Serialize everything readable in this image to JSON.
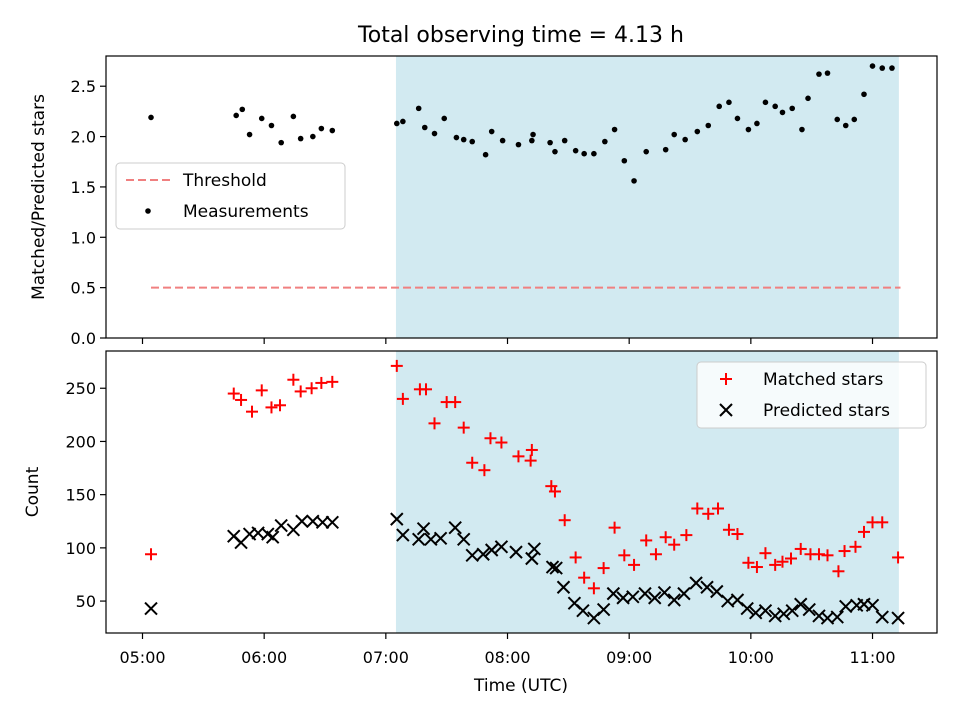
{
  "chart_data": [
    {
      "type": "scatter",
      "title": "Total observing time = 4.13 h",
      "xlabel": "",
      "ylabel": "Matched/Predicted stars",
      "x_unit": "time of day (UTC, hours)",
      "xlim": [
        4.7,
        11.53
      ],
      "ylim": [
        0,
        2.8
      ],
      "yticks": [
        "0.0",
        "0.5",
        "1.0",
        "1.5",
        "2.0",
        "2.5"
      ],
      "observing_window": {
        "start": "07:05",
        "end": "11:13",
        "color": "#add8e6"
      },
      "legend": {
        "position": "left",
        "entries": [
          "Threshold",
          "Measurements"
        ]
      },
      "threshold": {
        "name": "Threshold",
        "value": 0.5,
        "x": [
          5.07,
          11.23
        ],
        "color": "#f08080"
      },
      "series": [
        {
          "name": "Measurements",
          "color": "#000000",
          "x": [
            5.07,
            5.77,
            5.82,
            5.88,
            5.98,
            6.06,
            6.14,
            6.24,
            6.3,
            6.4,
            6.47,
            6.56,
            7.09,
            7.14,
            7.27,
            7.32,
            7.4,
            7.48,
            7.58,
            7.64,
            7.71,
            7.82,
            7.87,
            7.96,
            8.09,
            8.2,
            8.21,
            8.35,
            8.39,
            8.47,
            8.56,
            8.63,
            8.71,
            8.8,
            8.88,
            8.96,
            9.04,
            9.14,
            9.3,
            9.37,
            9.46,
            9.56,
            9.65,
            9.74,
            9.82,
            9.89,
            9.98,
            10.05,
            10.12,
            10.2,
            10.26,
            10.34,
            10.42,
            10.47,
            10.56,
            10.63,
            10.71,
            10.78,
            10.85,
            10.93,
            11.0,
            11.08,
            11.16
          ],
          "y": [
            2.19,
            2.21,
            2.27,
            2.02,
            2.18,
            2.11,
            1.94,
            2.2,
            1.98,
            2.0,
            2.08,
            2.06,
            2.13,
            2.15,
            2.28,
            2.09,
            2.03,
            2.18,
            1.99,
            1.97,
            1.95,
            1.82,
            2.05,
            1.96,
            1.92,
            1.96,
            2.02,
            1.94,
            1.85,
            1.96,
            1.86,
            1.83,
            1.83,
            1.95,
            2.07,
            1.76,
            1.56,
            1.85,
            1.87,
            2.02,
            1.97,
            2.05,
            2.11,
            2.3,
            2.34,
            2.18,
            2.07,
            2.13,
            2.34,
            2.3,
            2.24,
            2.28,
            2.07,
            2.38,
            2.62,
            2.63,
            2.17,
            2.11,
            2.17,
            2.42,
            2.7,
            2.68,
            2.68
          ]
        }
      ]
    },
    {
      "type": "scatter",
      "title": "",
      "xlabel": "Time (UTC)",
      "ylabel": "Count",
      "x_unit": "time of day (UTC, hours)",
      "xlim": [
        4.7,
        11.53
      ],
      "ylim": [
        20,
        285
      ],
      "xticks": [
        "05:00",
        "06:00",
        "07:00",
        "08:00",
        "09:00",
        "10:00",
        "11:00"
      ],
      "yticks": [
        "50",
        "100",
        "150",
        "200",
        "250"
      ],
      "observing_window": {
        "start": "07:05",
        "end": "11:13",
        "color": "#add8e6"
      },
      "legend": {
        "position": "top-right",
        "entries": [
          "Matched stars",
          "Predicted stars"
        ]
      },
      "series": [
        {
          "name": "Matched stars",
          "marker": "+",
          "color": "#ff0000",
          "x": [
            5.07,
            5.75,
            5.81,
            5.9,
            5.98,
            6.06,
            6.13,
            6.24,
            6.3,
            6.39,
            6.47,
            6.56,
            7.09,
            7.14,
            7.28,
            7.33,
            7.4,
            7.5,
            7.57,
            7.64,
            7.71,
            7.81,
            7.86,
            7.95,
            8.09,
            8.19,
            8.2,
            8.36,
            8.39,
            8.47,
            8.56,
            8.63,
            8.71,
            8.79,
            8.88,
            8.96,
            9.04,
            9.14,
            9.22,
            9.3,
            9.37,
            9.47,
            9.56,
            9.65,
            9.73,
            9.82,
            9.89,
            9.98,
            10.05,
            10.12,
            10.2,
            10.26,
            10.33,
            10.41,
            10.49,
            10.56,
            10.63,
            10.72,
            10.77,
            10.86,
            10.93,
            11.0,
            11.08,
            11.21
          ],
          "y": [
            94,
            245,
            239,
            228,
            248,
            232,
            234,
            258,
            247,
            250,
            255,
            256,
            271,
            240,
            249,
            249,
            217,
            237,
            237,
            213,
            180,
            173,
            203,
            199,
            186,
            182,
            192,
            158,
            153,
            126,
            91,
            72,
            62,
            81,
            119,
            93,
            84,
            107,
            94,
            110,
            103,
            112,
            137,
            132,
            137,
            117,
            113,
            86,
            82,
            95,
            84,
            87,
            90,
            99,
            94,
            94,
            93,
            78,
            97,
            101,
            115,
            124,
            124,
            91
          ]
        },
        {
          "name": "Predicted stars",
          "marker": "x",
          "color": "#000000",
          "x": [
            5.07,
            5.75,
            5.81,
            5.88,
            5.95,
            6.03,
            6.07,
            6.14,
            6.24,
            6.31,
            6.4,
            6.48,
            6.56,
            7.09,
            7.14,
            7.27,
            7.31,
            7.37,
            7.45,
            7.57,
            7.64,
            7.71,
            7.8,
            7.87,
            7.95,
            8.07,
            8.2,
            8.22,
            8.37,
            8.4,
            8.46,
            8.55,
            8.62,
            8.71,
            8.79,
            8.87,
            8.95,
            9.03,
            9.13,
            9.21,
            9.29,
            9.37,
            9.45,
            9.55,
            9.64,
            9.72,
            9.81,
            9.89,
            9.97,
            10.04,
            10.12,
            10.2,
            10.27,
            10.34,
            10.41,
            10.48,
            10.56,
            10.63,
            10.71,
            10.78,
            10.87,
            10.93,
            11.0,
            11.08,
            11.21
          ],
          "y": [
            43,
            111,
            105,
            113,
            114,
            113,
            110,
            121,
            117,
            125,
            125,
            124,
            124,
            127,
            112,
            108,
            118,
            108,
            109,
            119,
            108,
            93,
            94,
            98,
            101,
            96,
            90,
            99,
            82,
            81,
            63,
            48,
            41,
            34,
            42,
            57,
            53,
            54,
            57,
            53,
            58,
            51,
            57,
            67,
            63,
            59,
            50,
            51,
            43,
            39,
            41,
            36,
            38,
            41,
            47,
            42,
            36,
            34,
            35,
            45,
            46,
            47,
            46,
            35,
            34
          ]
        }
      ]
    }
  ]
}
